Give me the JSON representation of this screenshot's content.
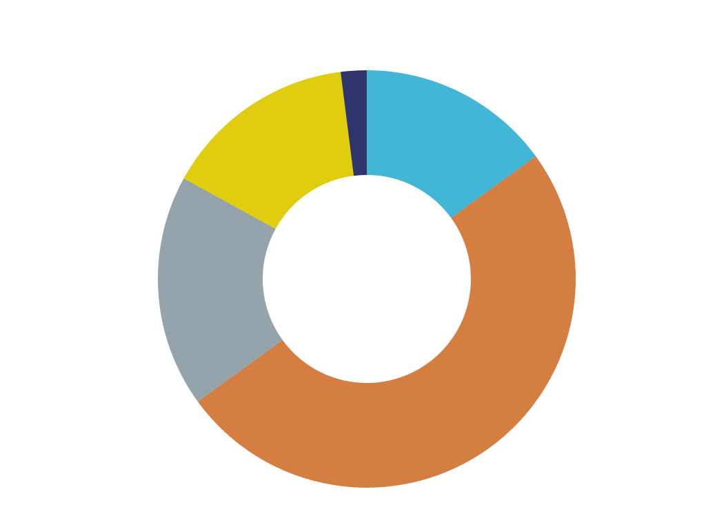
{
  "chart_data": {
    "type": "pie",
    "variant": "donut",
    "categories": [
      "",
      "",
      "",
      "",
      ""
    ],
    "values": [
      15,
      50,
      18,
      15,
      2
    ],
    "colors": [
      "#41b6d6",
      "#d47f41",
      "#95a3aa",
      "#e0cd10",
      "#30346d"
    ],
    "start_angle": "12 o'clock",
    "direction": "clockwise",
    "legend": "none"
  }
}
